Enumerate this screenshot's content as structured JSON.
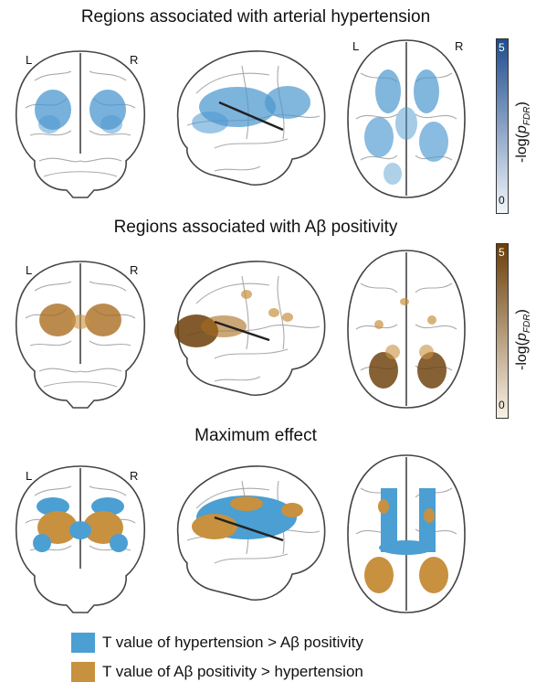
{
  "panels": [
    {
      "title": "Regions associated with arterial hypertension",
      "left": "L",
      "right": "R"
    },
    {
      "title": "Regions associated with Aβ positivity",
      "left": "L",
      "right": "R"
    },
    {
      "title": "Maximum effect",
      "left": "L",
      "right": "R"
    }
  ],
  "colorbars": [
    {
      "max": "5",
      "min": "0",
      "label": "-log(p_FDR)",
      "label_main": "-log(",
      "label_italic": "p",
      "label_sub": "FDR",
      "label_close": ")",
      "color_low": "#f2f6fb",
      "color_high": "#1f4d8e"
    },
    {
      "max": "5",
      "min": "0",
      "label": "-log(p_FDR)",
      "label_main": "-log(",
      "label_italic": "p",
      "label_sub": "FDR",
      "label_close": ")",
      "color_low": "#f8f1e6",
      "color_high": "#6b3e08"
    }
  ],
  "legend": [
    {
      "text": "T value of hypertension > Aβ positivity",
      "color": "#4b9fd3"
    },
    {
      "text": "T value of Aβ positivity > hypertension",
      "color": "#c8913f"
    }
  ],
  "colors": {
    "blue_blob": "#4b97cf",
    "brown_blob": "#9a5c14",
    "max_blue": "#4b9fd3",
    "max_orange": "#c8913f"
  }
}
